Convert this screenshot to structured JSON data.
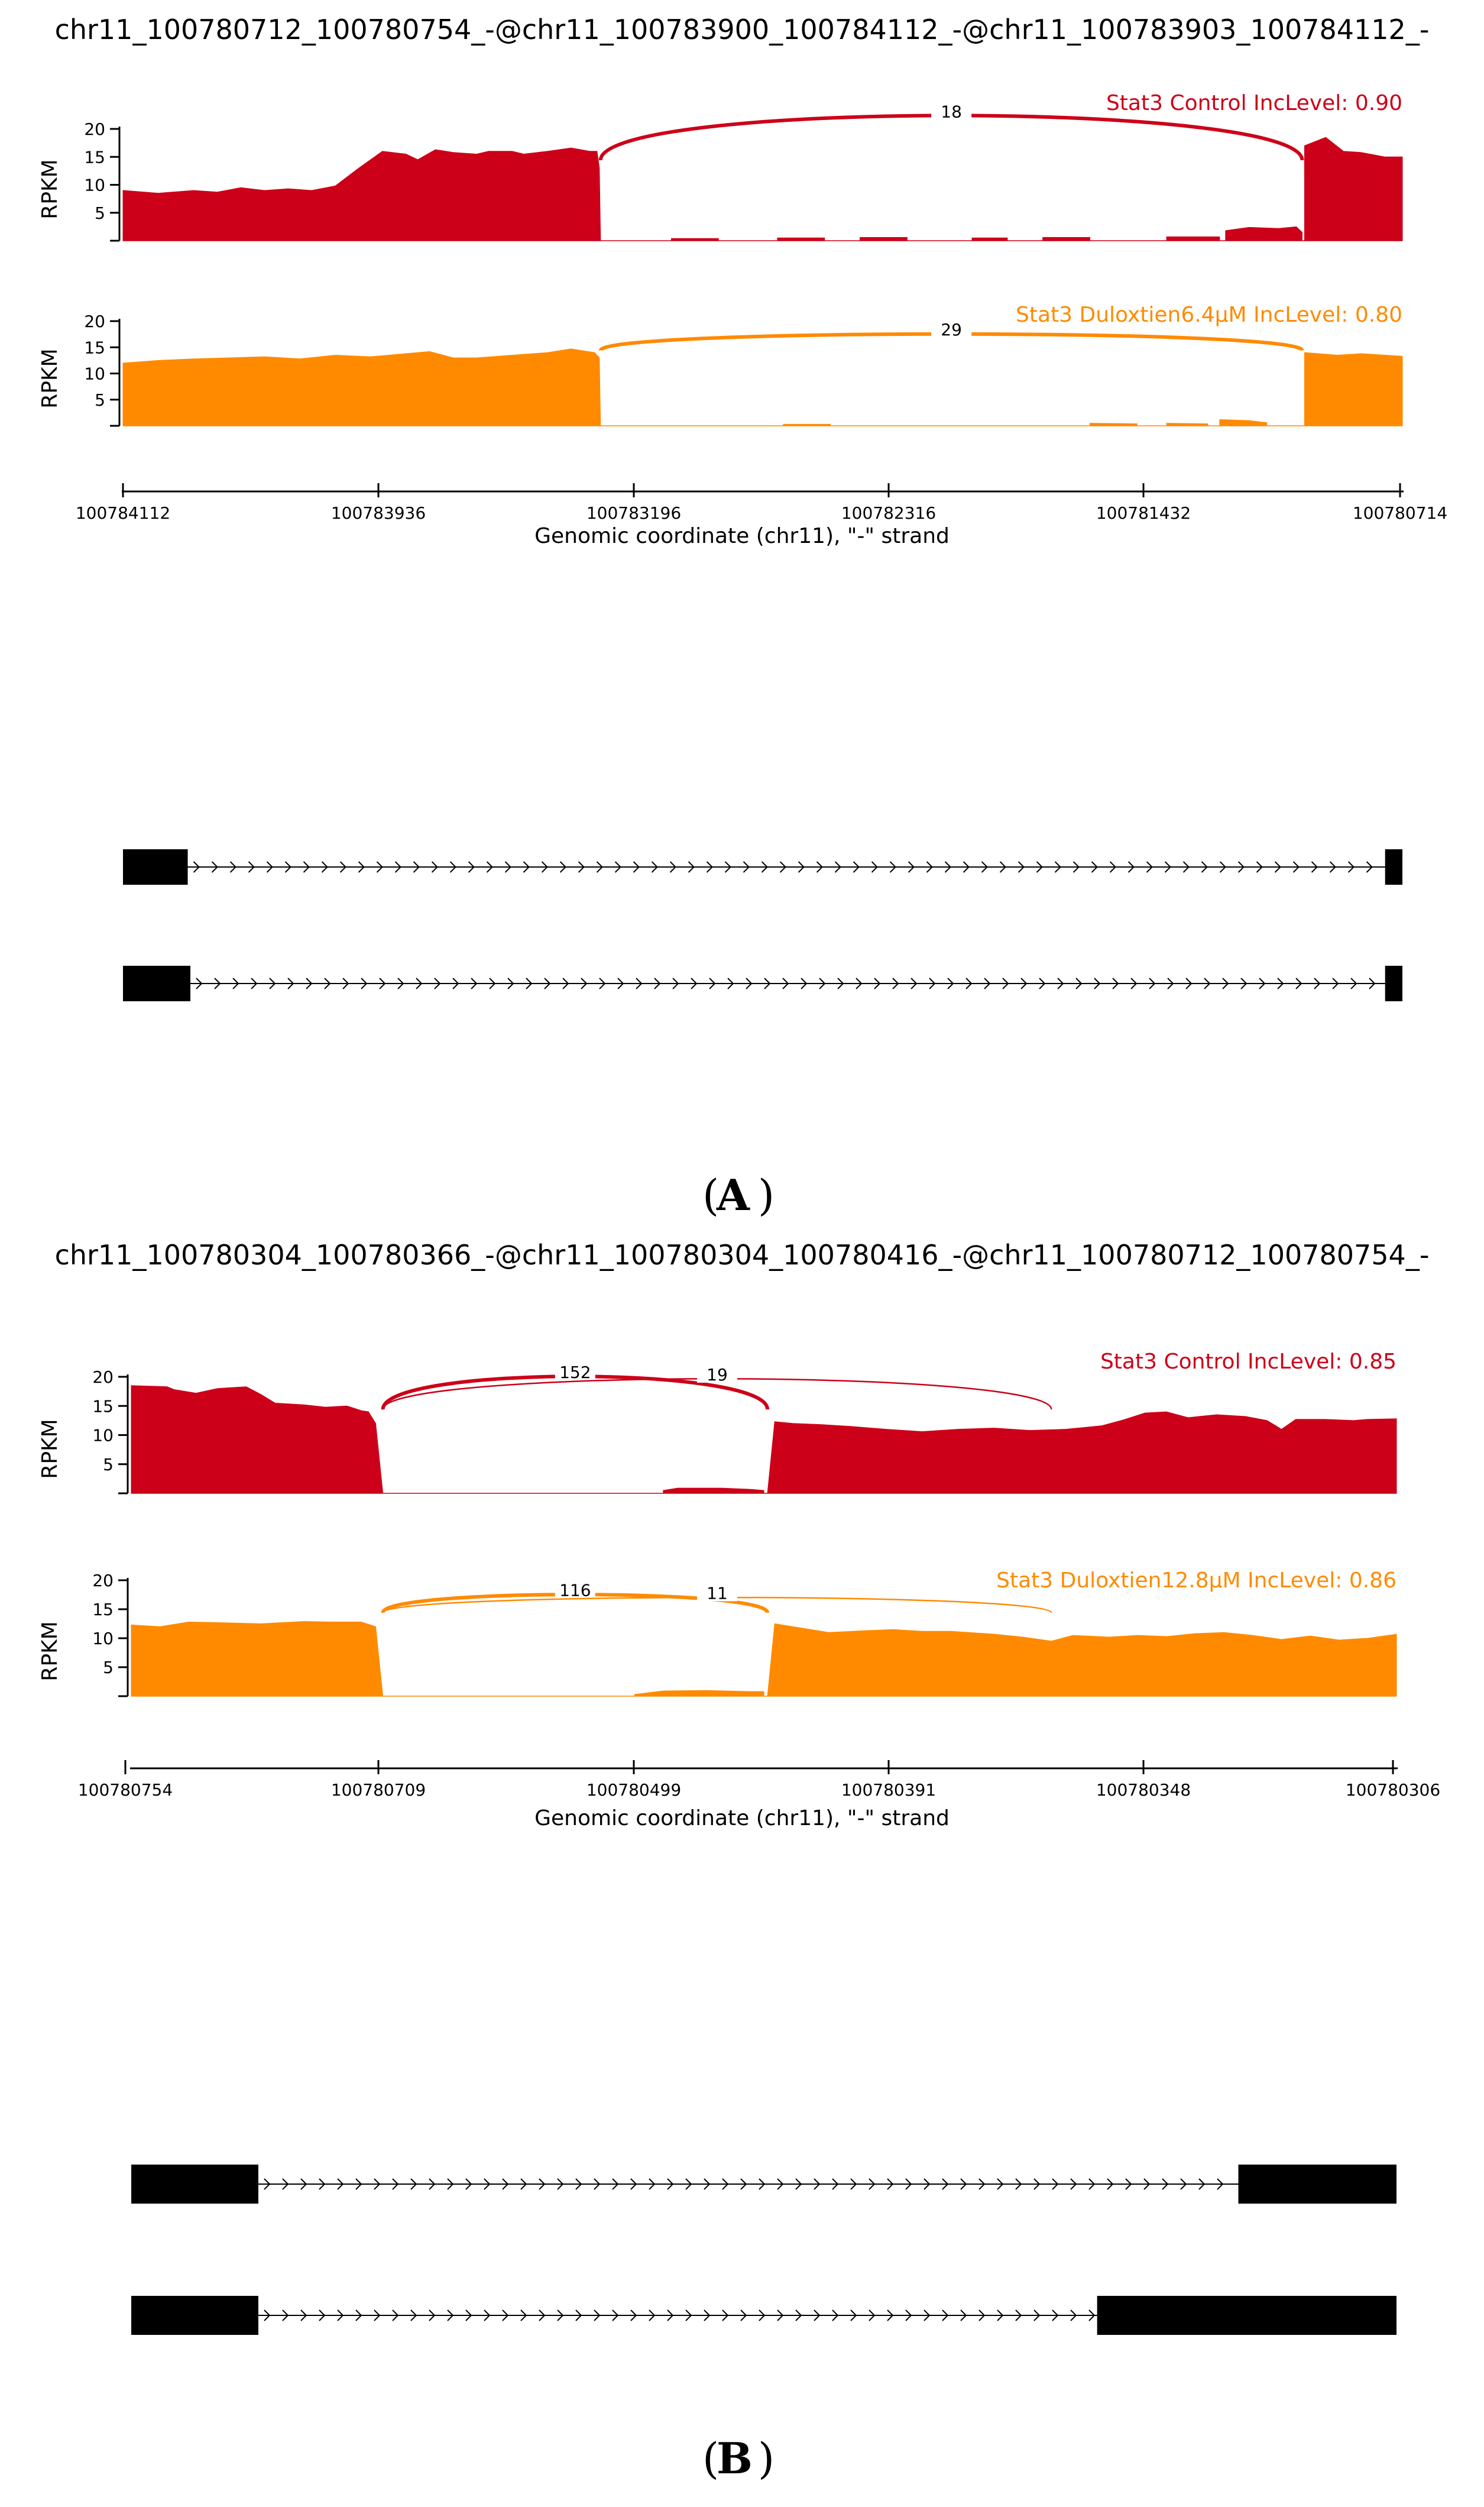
{
  "colors": {
    "control": "#cc0018",
    "treated": "#ff8a00",
    "exon": "#000000"
  },
  "chart_data": [
    {
      "panel_label": "A",
      "title": "chr11_100780712_100780754_-@chr11_100783900_100784112_-@chr11_100783903_100784112_-",
      "type": "area",
      "ylabel": "RPKM",
      "yticks": [
        5,
        10,
        15,
        20
      ],
      "ylim": [
        0,
        20
      ],
      "xlabel": "Genomic coordinate (chr11), \"-\" strand",
      "xticks": [
        "100784112",
        "100783936",
        "100783196",
        "100782316",
        "100781432",
        "100780714"
      ],
      "series": [
        {
          "name": "Stat3 Control IncLevel: 0.90",
          "color_key": "control",
          "coverage_segments": [
            [
              [
                0,
                9
              ],
              [
                0.03,
                8.5
              ],
              [
                0.06,
                9
              ],
              [
                0.08,
                8.7
              ],
              [
                0.1,
                9.5
              ],
              [
                0.12,
                9
              ],
              [
                0.14,
                9.3
              ],
              [
                0.16,
                9
              ],
              [
                0.18,
                9.8
              ],
              [
                0.2,
                13
              ],
              [
                0.22,
                16
              ],
              [
                0.24,
                15.5
              ],
              [
                0.25,
                14.5
              ],
              [
                0.265,
                16.3
              ],
              [
                0.28,
                15.8
              ],
              [
                0.3,
                15.5
              ],
              [
                0.31,
                16
              ],
              [
                0.33,
                16
              ],
              [
                0.34,
                15.5
              ],
              [
                0.36,
                16
              ],
              [
                0.38,
                16.6
              ],
              [
                0.396,
                16
              ],
              [
                0.402,
                16
              ],
              [
                0.404,
                13
              ],
              [
                0.405,
                0
              ]
            ],
            [
              [
                0.465,
                0.4
              ],
              [
                0.505,
                0.4
              ]
            ],
            [
              [
                0.555,
                0.5
              ],
              [
                0.595,
                0.5
              ]
            ],
            [
              [
                0.625,
                0.6
              ],
              [
                0.665,
                0.6
              ]
            ],
            [
              [
                0.72,
                0.5
              ],
              [
                0.75,
                0.5
              ]
            ],
            [
              [
                0.78,
                0.6
              ],
              [
                0.82,
                0.6
              ]
            ],
            [
              [
                0.885,
                0.7
              ],
              [
                0.93,
                0.7
              ]
            ],
            [
              [
                0.935,
                1.8
              ],
              [
                0.955,
                2.4
              ],
              [
                0.98,
                2.2
              ],
              [
                0.995,
                2.5
              ],
              [
                1.0,
                1.5
              ]
            ],
            [
              [
                1.002,
                17
              ],
              [
                1.02,
                18.5
              ],
              [
                1.035,
                16
              ],
              [
                1.05,
                15.8
              ],
              [
                1.07,
                15
              ],
              [
                1.085,
                15
              ]
            ]
          ],
          "junctions": [
            {
              "label": "18",
              "from": 0.405,
              "to": 1.0,
              "height": 22.3,
              "thick": true
            }
          ]
        },
        {
          "name": "Stat3 Duloxtien6.4μM IncLevel: 0.80",
          "color_key": "treated",
          "coverage_segments": [
            [
              [
                0,
                12
              ],
              [
                0.03,
                12.5
              ],
              [
                0.06,
                12.8
              ],
              [
                0.09,
                13
              ],
              [
                0.12,
                13.2
              ],
              [
                0.15,
                12.8
              ],
              [
                0.18,
                13.5
              ],
              [
                0.21,
                13.2
              ],
              [
                0.24,
                13.8
              ],
              [
                0.26,
                14.2
              ],
              [
                0.28,
                13
              ],
              [
                0.3,
                13
              ],
              [
                0.33,
                13.5
              ],
              [
                0.36,
                14
              ],
              [
                0.38,
                14.7
              ],
              [
                0.4,
                14
              ],
              [
                0.404,
                13
              ],
              [
                0.405,
                0
              ]
            ],
            [
              [
                0.56,
                0.3
              ],
              [
                0.6,
                0.3
              ]
            ],
            [
              [
                0.82,
                0.5
              ],
              [
                0.86,
                0.4
              ]
            ],
            [
              [
                0.885,
                0.5
              ],
              [
                0.92,
                0.4
              ]
            ],
            [
              [
                0.93,
                1.2
              ],
              [
                0.955,
                1.0
              ],
              [
                0.97,
                0.6
              ]
            ],
            [
              [
                1.002,
                14
              ],
              [
                1.03,
                13.5
              ],
              [
                1.05,
                13.8
              ],
              [
                1.085,
                13.3
              ]
            ]
          ],
          "junctions": [
            {
              "label": "29",
              "from": 0.405,
              "to": 1.0,
              "height": 17.5,
              "thick": true
            }
          ]
        }
      ],
      "isoforms": [
        {
          "exons": [
            [
              100784112,
              100783940
            ],
            [
              100780760,
              100780714
            ]
          ]
        },
        {
          "exons": [
            [
              100784112,
              100783933
            ],
            [
              100780760,
              100780714
            ]
          ]
        }
      ]
    },
    {
      "panel_label": "B",
      "title": "chr11_100780304_100780366_-@chr11_100780304_100780416_-@chr11_100780712_100780754_-",
      "type": "area",
      "ylabel": "RPKM",
      "yticks": [
        5,
        10,
        15,
        20
      ],
      "ylim": [
        0,
        20
      ],
      "xlabel": "Genomic coordinate (chr11), \"-\" strand",
      "xticks": [
        "100780754",
        "100780709",
        "100780499",
        "100780391",
        "100780348",
        "100780306"
      ],
      "series": [
        {
          "name": "Stat3 Control IncLevel: 0.85",
          "color_key": "control",
          "coverage_segments": [
            [
              [
                0,
                18.5
              ],
              [
                0.05,
                18.3
              ],
              [
                0.06,
                17.8
              ],
              [
                0.09,
                17.2
              ],
              [
                0.12,
                18
              ],
              [
                0.16,
                18.3
              ],
              [
                0.18,
                17
              ],
              [
                0.2,
                15.5
              ],
              [
                0.24,
                15.2
              ],
              [
                0.27,
                14.8
              ],
              [
                0.3,
                15
              ],
              [
                0.32,
                14.2
              ],
              [
                0.33,
                14
              ],
              [
                0.34,
                12
              ],
              [
                0.35,
                0
              ]
            ],
            [
              [
                0.74,
                0.5
              ],
              [
                0.76,
                0.9
              ],
              [
                0.82,
                0.9
              ],
              [
                0.86,
                0.7
              ],
              [
                0.88,
                0.5
              ]
            ],
            [
              [
                0.885,
                0
              ],
              [
                0.895,
                12.3
              ],
              [
                0.92,
                12
              ],
              [
                0.96,
                11.8
              ],
              [
                1.0,
                11.5
              ],
              [
                1.05,
                11
              ],
              [
                1.1,
                10.6
              ],
              [
                1.15,
                11
              ],
              [
                1.2,
                11.2
              ],
              [
                1.25,
                10.8
              ],
              [
                1.3,
                11
              ],
              [
                1.35,
                11.6
              ],
              [
                1.38,
                12.6
              ],
              [
                1.41,
                13.8
              ],
              [
                1.44,
                14
              ],
              [
                1.47,
                13
              ],
              [
                1.51,
                13.5
              ],
              [
                1.55,
                13.2
              ],
              [
                1.58,
                12.5
              ],
              [
                1.6,
                11
              ],
              [
                1.62,
                12.7
              ],
              [
                1.66,
                12.7
              ],
              [
                1.7,
                12.5
              ],
              [
                1.72,
                12.7
              ],
              [
                1.76,
                12.8
              ]
            ]
          ],
          "junctions": [
            {
              "label": "152",
              "from": 0.35,
              "to": 0.885,
              "height": 20,
              "thick": true
            },
            {
              "label": "19",
              "from": 0.35,
              "to": 1.28,
              "height": 19.6,
              "thick": false
            }
          ]
        },
        {
          "name": "Stat3 Duloxtien12.8μM IncLevel: 0.86",
          "color_key": "treated",
          "coverage_segments": [
            [
              [
                0,
                12.3
              ],
              [
                0.04,
                12
              ],
              [
                0.08,
                12.8
              ],
              [
                0.12,
                12.7
              ],
              [
                0.18,
                12.5
              ],
              [
                0.24,
                12.9
              ],
              [
                0.28,
                12.8
              ],
              [
                0.32,
                12.8
              ],
              [
                0.34,
                12
              ],
              [
                0.35,
                0
              ]
            ],
            [
              [
                0.7,
                0.3
              ],
              [
                0.74,
                0.9
              ],
              [
                0.8,
                1.0
              ],
              [
                0.86,
                0.8
              ],
              [
                0.88,
                0.8
              ]
            ],
            [
              [
                0.885,
                0
              ],
              [
                0.895,
                12.5
              ],
              [
                0.92,
                12
              ],
              [
                0.97,
                11
              ],
              [
                1.02,
                11.3
              ],
              [
                1.06,
                11.5
              ],
              [
                1.1,
                11.2
              ],
              [
                1.14,
                11.2
              ],
              [
                1.2,
                10.7
              ],
              [
                1.24,
                10.2
              ],
              [
                1.28,
                9.5
              ],
              [
                1.31,
                10.5
              ],
              [
                1.36,
                10.2
              ],
              [
                1.4,
                10.5
              ],
              [
                1.44,
                10.3
              ],
              [
                1.48,
                10.8
              ],
              [
                1.52,
                11
              ],
              [
                1.56,
                10.5
              ],
              [
                1.6,
                9.8
              ],
              [
                1.64,
                10.4
              ],
              [
                1.68,
                9.7
              ],
              [
                1.72,
                10
              ],
              [
                1.76,
                10.7
              ]
            ]
          ],
          "junctions": [
            {
              "label": "116",
              "from": 0.35,
              "to": 0.885,
              "height": 17.5,
              "thick": true
            },
            {
              "label": "11",
              "from": 0.35,
              "to": 1.28,
              "height": 17,
              "thick": false
            }
          ]
        }
      ],
      "isoforms": [
        {
          "exons": [
            [
              100780754,
              100780709
            ],
            [
              100780362,
              100780306
            ]
          ]
        },
        {
          "exons": [
            [
              100780754,
              100780709
            ],
            [
              100780412,
              100780306
            ]
          ]
        }
      ]
    }
  ]
}
